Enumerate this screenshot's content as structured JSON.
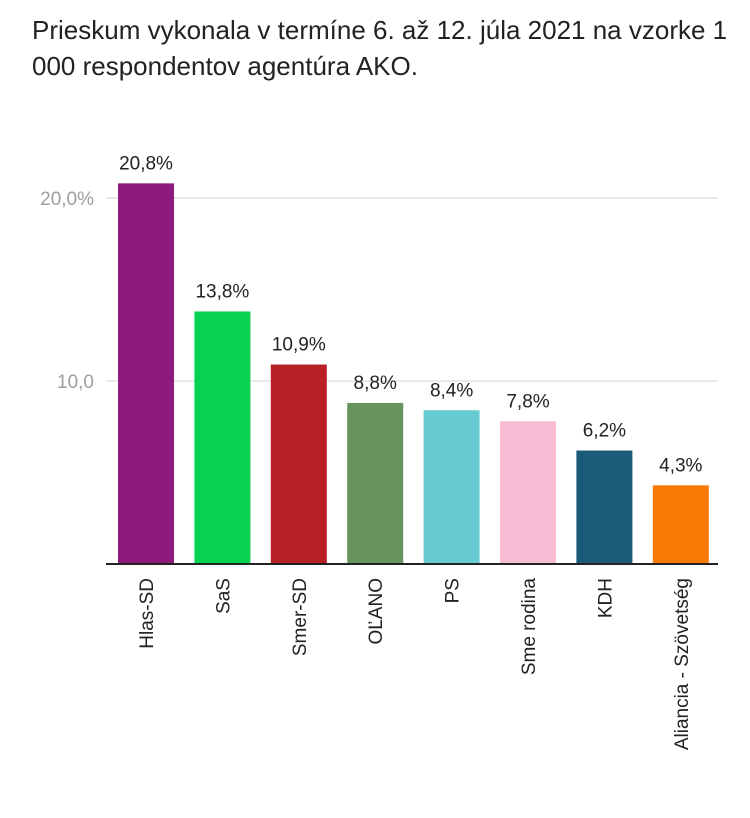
{
  "chart_data": {
    "type": "bar",
    "title": "Prieskum vykonala v termíne 6. až 12. júla 2021 na vzorke 1 000 respondentov agentúra AKO.",
    "xlabel": "",
    "ylabel": "",
    "ylim": [
      0,
      22
    ],
    "yticks": [
      {
        "value": 10,
        "label": "10,0"
      },
      {
        "value": 20,
        "label": "20,0%"
      }
    ],
    "grid": true,
    "categories": [
      "Hlas-SD",
      "SaS",
      "Smer-SD",
      "OĽANO",
      "PS",
      "Sme rodina",
      "KDH",
      "Aliancia - Szövetség"
    ],
    "values": [
      20.8,
      13.8,
      10.9,
      8.8,
      8.4,
      7.8,
      6.2,
      4.3
    ],
    "data_labels": [
      "20,8%",
      "13,8%",
      "10,9%",
      "8,8%",
      "8,4%",
      "7,8%",
      "6,2%",
      "4,3%"
    ],
    "colors": [
      "#8e1a7c",
      "#07d150",
      "#b72126",
      "#68935d",
      "#67ccd1",
      "#f7bcd3",
      "#1b5b77",
      "#fb7b09"
    ]
  }
}
